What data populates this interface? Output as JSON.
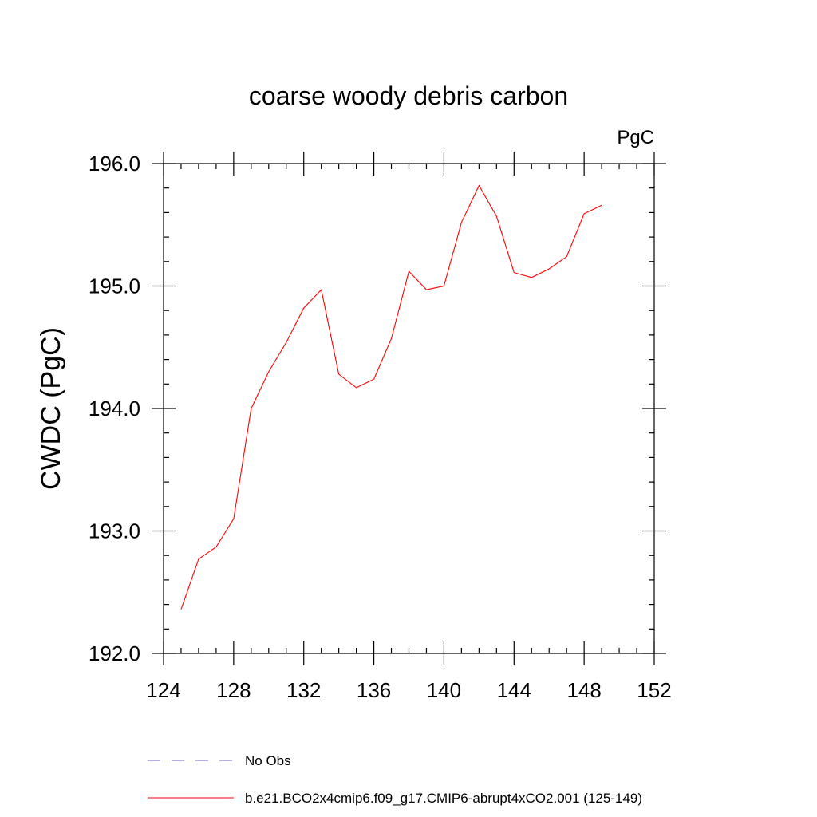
{
  "chart_data": {
    "type": "line",
    "title": "coarse woody debris carbon",
    "units": "PgC",
    "xlabel": "",
    "ylabel": "CWDC  (PgC)",
    "xlim": [
      124,
      152
    ],
    "ylim": [
      192.0,
      196.0
    ],
    "xticks": [
      "124",
      "128",
      "132",
      "136",
      "140",
      "144",
      "148",
      "152"
    ],
    "yticks": [
      "192.0",
      "193.0",
      "194.0",
      "195.0",
      "196.0"
    ],
    "grid": false,
    "legend_placement": "bottom",
    "series": [
      {
        "name": "b.e21.BCO2x4cmip6.f09_g17.CMIP6-abrupt4xCO2.001 (125-149)",
        "color": "#ff0000",
        "style": "solid",
        "x": [
          125,
          126,
          127,
          128,
          129,
          130,
          131,
          132,
          133,
          134,
          135,
          136,
          137,
          138,
          139,
          140,
          141,
          142,
          143,
          144,
          145,
          146,
          147,
          148,
          149
        ],
        "y": [
          192.36,
          192.77,
          192.87,
          193.1,
          194.0,
          194.3,
          194.54,
          194.82,
          194.97,
          194.28,
          194.17,
          194.24,
          194.57,
          195.12,
          194.97,
          195.0,
          195.52,
          195.82,
          195.57,
          195.11,
          195.07,
          195.14,
          195.24,
          195.59,
          195.66
        ]
      }
    ],
    "legend": [
      {
        "label": "No Obs",
        "color": "#6a5acd",
        "style": "dashed"
      },
      {
        "label": "b.e21.BCO2x4cmip6.f09_g17.CMIP6-abrupt4xCO2.001 (125-149)",
        "color": "#ff0000",
        "style": "solid"
      }
    ]
  }
}
